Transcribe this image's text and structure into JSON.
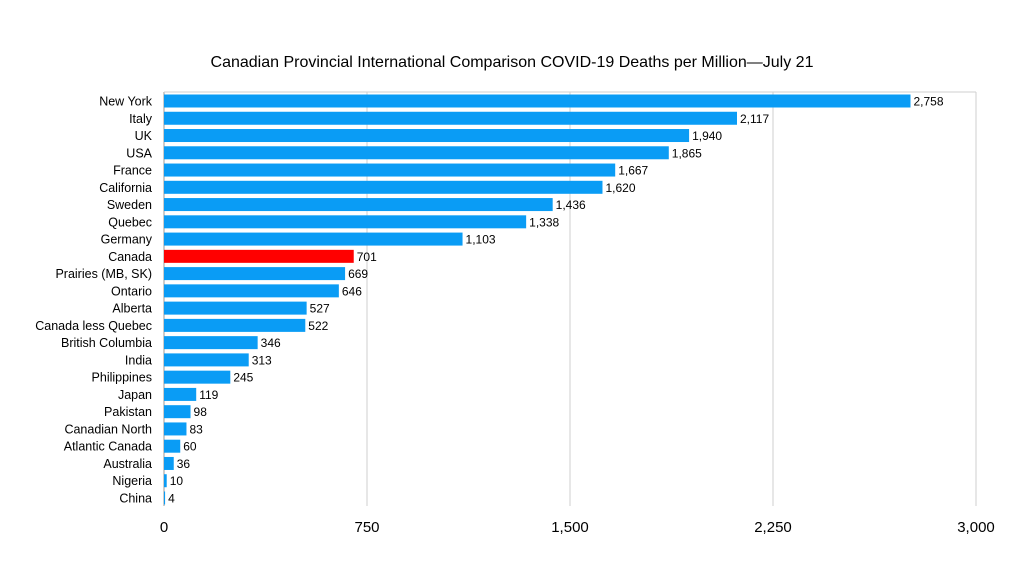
{
  "chart_data": {
    "type": "bar",
    "orientation": "horizontal",
    "title": "Canadian Provincial International Comparison COVID-19 Deaths per Million—July 21",
    "xlabel": "",
    "ylabel": "",
    "xlim": [
      0,
      3000
    ],
    "xticks": [
      0,
      750,
      1500,
      2250,
      3000
    ],
    "xtick_labels": [
      "0",
      "750",
      "1,500",
      "2,250",
      "3,000"
    ],
    "grid": true,
    "categories": [
      "New York",
      "Italy",
      "UK",
      "USA",
      "France",
      "California",
      "Sweden",
      "Quebec",
      "Germany",
      "Canada",
      "Prairies (MB, SK)",
      "Ontario",
      "Alberta",
      "Canada less Quebec",
      "British Columbia",
      "India",
      "Philippines",
      "Japan",
      "Pakistan",
      "Canadian North",
      "Atlantic Canada",
      "Australia",
      "Nigeria",
      "China"
    ],
    "values": [
      2758,
      2117,
      1940,
      1865,
      1667,
      1620,
      1436,
      1338,
      1103,
      701,
      669,
      646,
      527,
      522,
      346,
      313,
      245,
      119,
      98,
      83,
      60,
      36,
      10,
      4
    ],
    "value_labels": [
      "2,758",
      "2,117",
      "1,940",
      "1,865",
      "1,667",
      "1,620",
      "1,436",
      "1,338",
      "1,103",
      "701",
      "669",
      "646",
      "527",
      "522",
      "346",
      "313",
      "245",
      "119",
      "98",
      "83",
      "60",
      "36",
      "10",
      "4"
    ],
    "bar_color": "#0a9cf5",
    "highlight": {
      "category": "Canada",
      "color": "#ff0000"
    }
  }
}
